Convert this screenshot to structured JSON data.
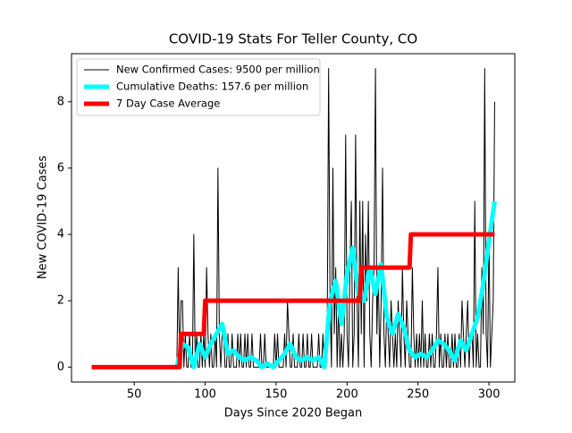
{
  "chart_data": {
    "type": "line",
    "title": "COVID-19 Stats For Teller County, CO",
    "x_label": "Days Since 2020 Began",
    "y_label": "New COVID-19 Cases",
    "xlim": [
      5.8,
      318.2
    ],
    "ylim": [
      -0.45,
      9.45
    ],
    "xticks": [
      50,
      100,
      150,
      200,
      250,
      300
    ],
    "yticks": [
      0,
      2,
      4,
      6,
      8
    ],
    "grid": false,
    "legend": "upper left",
    "series": [
      {
        "name": "New Confirmed Cases: 9500 per million",
        "color": "#000000",
        "width": 1,
        "x": [
          20,
          21,
          22,
          23,
          24,
          25,
          26,
          27,
          28,
          29,
          30,
          31,
          32,
          33,
          34,
          35,
          36,
          37,
          38,
          39,
          40,
          41,
          42,
          43,
          44,
          45,
          46,
          47,
          48,
          49,
          50,
          51,
          52,
          53,
          54,
          55,
          56,
          57,
          58,
          59,
          60,
          61,
          62,
          63,
          64,
          65,
          66,
          67,
          68,
          69,
          70,
          71,
          72,
          73,
          74,
          75,
          76,
          77,
          78,
          79,
          80,
          81,
          82,
          83,
          84,
          85,
          86,
          87,
          88,
          89,
          90,
          91,
          92,
          93,
          94,
          95,
          96,
          97,
          98,
          99,
          100,
          101,
          102,
          103,
          104,
          105,
          106,
          107,
          108,
          109,
          110,
          111,
          112,
          113,
          114,
          115,
          116,
          117,
          118,
          119,
          120,
          121,
          122,
          123,
          124,
          125,
          126,
          127,
          128,
          129,
          130,
          131,
          132,
          133,
          134,
          135,
          136,
          137,
          138,
          139,
          140,
          141,
          142,
          143,
          144,
          145,
          146,
          147,
          148,
          149,
          150,
          151,
          152,
          153,
          154,
          155,
          156,
          157,
          158,
          159,
          160,
          161,
          162,
          163,
          164,
          165,
          166,
          167,
          168,
          169,
          170,
          171,
          172,
          173,
          174,
          175,
          176,
          177,
          178,
          179,
          180,
          181,
          182,
          183,
          184,
          185,
          186,
          187,
          188,
          189,
          190,
          191,
          192,
          193,
          194,
          195,
          196,
          197,
          198,
          199,
          200,
          201,
          202,
          203,
          204,
          205,
          206,
          207,
          208,
          209,
          210,
          211,
          212,
          213,
          214,
          215,
          216,
          217,
          218,
          219,
          220,
          221,
          222,
          223,
          224,
          225,
          226,
          227,
          228,
          229,
          230,
          231,
          232,
          233,
          234,
          235,
          236,
          237,
          238,
          239,
          240,
          241,
          242,
          243,
          244,
          245,
          246,
          247,
          248,
          249,
          250,
          251,
          252,
          253,
          254,
          255,
          256,
          257,
          258,
          259,
          260,
          261,
          262,
          263,
          264,
          265,
          266,
          267,
          268,
          269,
          270,
          271,
          272,
          273,
          274,
          275,
          276,
          277,
          278,
          279,
          280,
          281,
          282,
          283,
          284,
          285,
          286,
          287,
          288,
          289,
          290,
          291,
          292,
          293,
          294,
          295,
          296,
          297,
          298,
          299,
          300,
          301,
          302,
          303,
          304
        ],
        "values": [
          0,
          0,
          0,
          0,
          0,
          0,
          0,
          0,
          0,
          0,
          0,
          0,
          0,
          0,
          0,
          0,
          0,
          0,
          0,
          0,
          0,
          0,
          0,
          0,
          0,
          0,
          0,
          0,
          0,
          0,
          0,
          0,
          0,
          0,
          0,
          0,
          0,
          0,
          0,
          0,
          0,
          0,
          0,
          0,
          0,
          0,
          0,
          0,
          0,
          0,
          0,
          0,
          0,
          0,
          0,
          0,
          0,
          0,
          0,
          0,
          0,
          3,
          0,
          2,
          2,
          0,
          1,
          0,
          0,
          1,
          0,
          0,
          4,
          0,
          1,
          0,
          0,
          1,
          0,
          1,
          0,
          3,
          1,
          0,
          1,
          0,
          0,
          1,
          0,
          6,
          1,
          0,
          1,
          1,
          0,
          0,
          1,
          0,
          0,
          1,
          0,
          0,
          0,
          1,
          0,
          1,
          0,
          0,
          1,
          0,
          1,
          0,
          0,
          1,
          0,
          0,
          0,
          0,
          0,
          1,
          0,
          0,
          1,
          0,
          0,
          0,
          0,
          0,
          0,
          1,
          0,
          1,
          0,
          0,
          0,
          0,
          1,
          0,
          2,
          1,
          0,
          0,
          1,
          0,
          0,
          0,
          1,
          0,
          0,
          1,
          0,
          0,
          1,
          0,
          0,
          1,
          0,
          0,
          0,
          0,
          1,
          0,
          0,
          1,
          0,
          0,
          1,
          9,
          2,
          0,
          6,
          1,
          3,
          0,
          2,
          0,
          1,
          0,
          1,
          7,
          1,
          0,
          3,
          5,
          0,
          1,
          7,
          2,
          0,
          5,
          1,
          5,
          0,
          4,
          2,
          5,
          1,
          0,
          2,
          3,
          9,
          1,
          3,
          0,
          2,
          6,
          1,
          0,
          2,
          1,
          0,
          2,
          1,
          0,
          1,
          0,
          2,
          1,
          0,
          3,
          1,
          0,
          2,
          1,
          0,
          0,
          3,
          1,
          0,
          1,
          0,
          1,
          0,
          2,
          0,
          1,
          0,
          0,
          1,
          0,
          1,
          0,
          0,
          1,
          3,
          0,
          1,
          0,
          0,
          1,
          0,
          1,
          0,
          0,
          1,
          0,
          1,
          0,
          0,
          1,
          0,
          2,
          1,
          0,
          1,
          2,
          0,
          1,
          1,
          0,
          5,
          0,
          1,
          0,
          0,
          3,
          1,
          9,
          1,
          0,
          4,
          0,
          1,
          2,
          8
        ]
      },
      {
        "name": "Cumulative Deaths: 157.6 per million",
        "color": "#00ffff",
        "width": 5,
        "x": [
          80,
          84,
          88,
          92,
          96,
          100,
          104,
          108,
          112,
          116,
          120,
          124,
          128,
          132,
          136,
          140,
          144,
          148,
          152,
          156,
          160,
          164,
          168,
          172,
          176,
          180,
          184,
          188,
          192,
          196,
          200,
          204,
          208,
          212,
          216,
          220,
          224,
          228,
          232,
          236,
          240,
          244,
          248,
          252,
          256,
          260,
          264,
          268,
          272,
          276,
          280,
          284,
          288,
          292,
          296,
          300,
          304
        ],
        "values": [
          0,
          0.7,
          0.6,
          0,
          0.7,
          0.3,
          0.7,
          1.0,
          1.3,
          0.4,
          0.5,
          0.3,
          0.2,
          0.3,
          0.2,
          0,
          0.1,
          0,
          0.2,
          0.4,
          0.7,
          0.3,
          0.2,
          0.3,
          0.2,
          0.3,
          0,
          2.0,
          2.6,
          1.3,
          2.8,
          3.6,
          2.2,
          2.0,
          3.0,
          2.2,
          3.1,
          1.5,
          1.0,
          1.6,
          1.2,
          0.5,
          0.3,
          0.4,
          0.3,
          0.5,
          0.8,
          0.7,
          0.5,
          0.2,
          0.8,
          0.5,
          1.0,
          1.5,
          2.5,
          3.8,
          5.0
        ]
      },
      {
        "name": "7 Day Case Average",
        "color": "#ff0000",
        "width": 5,
        "x": [
          20,
          82,
          83,
          99,
          100,
          209,
          210,
          244,
          245,
          304
        ],
        "values": [
          0,
          0,
          1,
          1,
          2,
          2,
          3,
          3,
          4,
          4
        ]
      }
    ]
  }
}
